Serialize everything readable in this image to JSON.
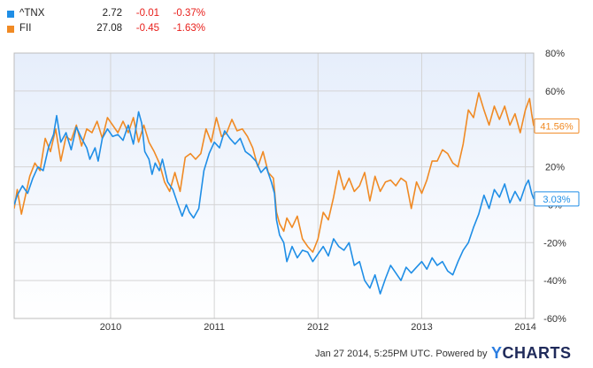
{
  "legend": [
    {
      "symbol": "^TNX",
      "last": "2.72",
      "change": "-0.01",
      "pct": "-0.37%",
      "color": "#1f8ee6"
    },
    {
      "symbol": "FII",
      "last": "27.08",
      "change": "-0.45",
      "pct": "-1.63%",
      "color": "#f08a24"
    }
  ],
  "footer": {
    "text": "Jan 27 2014, 5:25PM UTC.  Powered by",
    "brand_y": "Y",
    "brand_rest": "CHARTS"
  },
  "chart_data": {
    "type": "line",
    "x_tick_labels": [
      "2010",
      "2011",
      "2012",
      "2013",
      "2014"
    ],
    "y_tick_labels": [
      "80%",
      "60%",
      "40%",
      "20%",
      "0%",
      "-20%",
      "-40%",
      "-60%"
    ],
    "ylim": [
      -60,
      80
    ],
    "xlim": [
      2009.07,
      2014.08
    ],
    "grid": true,
    "legend_position": "top-left",
    "series": [
      {
        "name": "^TNX",
        "color": "#1f8ee6",
        "end_label": "3.03%",
        "points": [
          [
            2009.07,
            0
          ],
          [
            2009.1,
            5
          ],
          [
            2009.15,
            10
          ],
          [
            2009.2,
            6
          ],
          [
            2009.25,
            14
          ],
          [
            2009.3,
            20
          ],
          [
            2009.35,
            18
          ],
          [
            2009.4,
            30
          ],
          [
            2009.45,
            37
          ],
          [
            2009.48,
            47
          ],
          [
            2009.52,
            33
          ],
          [
            2009.57,
            38
          ],
          [
            2009.62,
            29
          ],
          [
            2009.67,
            41
          ],
          [
            2009.72,
            35
          ],
          [
            2009.77,
            30
          ],
          [
            2009.8,
            24
          ],
          [
            2009.85,
            30
          ],
          [
            2009.88,
            23
          ],
          [
            2009.92,
            35
          ],
          [
            2009.97,
            40
          ],
          [
            2010.02,
            36
          ],
          [
            2010.07,
            37
          ],
          [
            2010.12,
            34
          ],
          [
            2010.17,
            42
          ],
          [
            2010.22,
            32
          ],
          [
            2010.27,
            49
          ],
          [
            2010.3,
            43
          ],
          [
            2010.33,
            28
          ],
          [
            2010.37,
            24
          ],
          [
            2010.4,
            16
          ],
          [
            2010.43,
            22
          ],
          [
            2010.47,
            18
          ],
          [
            2010.5,
            24
          ],
          [
            2010.55,
            12
          ],
          [
            2010.6,
            8
          ],
          [
            2010.65,
            0
          ],
          [
            2010.69,
            -6
          ],
          [
            2010.73,
            0
          ],
          [
            2010.76,
            -4
          ],
          [
            2010.8,
            -7
          ],
          [
            2010.85,
            -2
          ],
          [
            2010.9,
            18
          ],
          [
            2010.95,
            27
          ],
          [
            2011.0,
            33
          ],
          [
            2011.05,
            30
          ],
          [
            2011.1,
            39
          ],
          [
            2011.15,
            35
          ],
          [
            2011.2,
            32
          ],
          [
            2011.25,
            35
          ],
          [
            2011.3,
            28
          ],
          [
            2011.35,
            26
          ],
          [
            2011.4,
            23
          ],
          [
            2011.45,
            17
          ],
          [
            2011.5,
            20
          ],
          [
            2011.55,
            12
          ],
          [
            2011.58,
            6
          ],
          [
            2011.6,
            -8
          ],
          [
            2011.63,
            -16
          ],
          [
            2011.67,
            -20
          ],
          [
            2011.7,
            -30
          ],
          [
            2011.75,
            -22
          ],
          [
            2011.8,
            -28
          ],
          [
            2011.85,
            -24
          ],
          [
            2011.9,
            -25
          ],
          [
            2011.95,
            -30
          ],
          [
            2012.0,
            -26
          ],
          [
            2012.05,
            -22
          ],
          [
            2012.1,
            -27
          ],
          [
            2012.15,
            -18
          ],
          [
            2012.2,
            -22
          ],
          [
            2012.25,
            -24
          ],
          [
            2012.3,
            -20
          ],
          [
            2012.35,
            -32
          ],
          [
            2012.4,
            -30
          ],
          [
            2012.45,
            -40
          ],
          [
            2012.5,
            -44
          ],
          [
            2012.55,
            -37
          ],
          [
            2012.6,
            -47
          ],
          [
            2012.65,
            -39
          ],
          [
            2012.7,
            -32
          ],
          [
            2012.75,
            -36
          ],
          [
            2012.8,
            -40
          ],
          [
            2012.85,
            -33
          ],
          [
            2012.9,
            -36
          ],
          [
            2012.95,
            -33
          ],
          [
            2013.0,
            -30
          ],
          [
            2013.05,
            -34
          ],
          [
            2013.1,
            -28
          ],
          [
            2013.15,
            -32
          ],
          [
            2013.2,
            -30
          ],
          [
            2013.25,
            -35
          ],
          [
            2013.3,
            -37
          ],
          [
            2013.35,
            -30
          ],
          [
            2013.4,
            -24
          ],
          [
            2013.45,
            -20
          ],
          [
            2013.5,
            -12
          ],
          [
            2013.55,
            -5
          ],
          [
            2013.6,
            5
          ],
          [
            2013.65,
            -2
          ],
          [
            2013.7,
            8
          ],
          [
            2013.75,
            4
          ],
          [
            2013.8,
            11
          ],
          [
            2013.85,
            1
          ],
          [
            2013.9,
            7
          ],
          [
            2013.95,
            2
          ],
          [
            2014.0,
            10
          ],
          [
            2014.03,
            13
          ],
          [
            2014.06,
            6
          ],
          [
            2014.08,
            3.03
          ]
        ]
      },
      {
        "name": "FII",
        "color": "#f08a24",
        "end_label": "41.56%",
        "points": [
          [
            2009.07,
            -2
          ],
          [
            2009.1,
            8
          ],
          [
            2009.14,
            -5
          ],
          [
            2009.18,
            5
          ],
          [
            2009.22,
            15
          ],
          [
            2009.27,
            22
          ],
          [
            2009.32,
            18
          ],
          [
            2009.37,
            35
          ],
          [
            2009.42,
            28
          ],
          [
            2009.47,
            40
          ],
          [
            2009.52,
            23
          ],
          [
            2009.57,
            36
          ],
          [
            2009.62,
            34
          ],
          [
            2009.67,
            42
          ],
          [
            2009.72,
            31
          ],
          [
            2009.77,
            40
          ],
          [
            2009.82,
            38
          ],
          [
            2009.87,
            44
          ],
          [
            2009.92,
            35
          ],
          [
            2009.97,
            46
          ],
          [
            2010.02,
            42
          ],
          [
            2010.07,
            38
          ],
          [
            2010.12,
            44
          ],
          [
            2010.17,
            38
          ],
          [
            2010.22,
            46
          ],
          [
            2010.27,
            33
          ],
          [
            2010.32,
            42
          ],
          [
            2010.37,
            33
          ],
          [
            2010.42,
            28
          ],
          [
            2010.47,
            22
          ],
          [
            2010.52,
            12
          ],
          [
            2010.57,
            7
          ],
          [
            2010.62,
            17
          ],
          [
            2010.67,
            7
          ],
          [
            2010.72,
            25
          ],
          [
            2010.77,
            27
          ],
          [
            2010.82,
            24
          ],
          [
            2010.87,
            27
          ],
          [
            2010.92,
            40
          ],
          [
            2010.97,
            33
          ],
          [
            2011.02,
            46
          ],
          [
            2011.07,
            36
          ],
          [
            2011.12,
            38
          ],
          [
            2011.17,
            45
          ],
          [
            2011.22,
            39
          ],
          [
            2011.27,
            40
          ],
          [
            2011.32,
            36
          ],
          [
            2011.37,
            30
          ],
          [
            2011.42,
            20
          ],
          [
            2011.47,
            28
          ],
          [
            2011.52,
            17
          ],
          [
            2011.57,
            14
          ],
          [
            2011.6,
            -4
          ],
          [
            2011.63,
            -10
          ],
          [
            2011.67,
            -14
          ],
          [
            2011.7,
            -7
          ],
          [
            2011.75,
            -12
          ],
          [
            2011.8,
            -6
          ],
          [
            2011.85,
            -18
          ],
          [
            2011.9,
            -22
          ],
          [
            2011.95,
            -25
          ],
          [
            2012.0,
            -18
          ],
          [
            2012.05,
            -4
          ],
          [
            2012.1,
            -8
          ],
          [
            2012.15,
            4
          ],
          [
            2012.2,
            18
          ],
          [
            2012.25,
            8
          ],
          [
            2012.3,
            14
          ],
          [
            2012.35,
            7
          ],
          [
            2012.4,
            10
          ],
          [
            2012.45,
            17
          ],
          [
            2012.5,
            2
          ],
          [
            2012.55,
            15
          ],
          [
            2012.6,
            7
          ],
          [
            2012.65,
            12
          ],
          [
            2012.7,
            13
          ],
          [
            2012.75,
            10
          ],
          [
            2012.8,
            14
          ],
          [
            2012.85,
            12
          ],
          [
            2012.9,
            -2
          ],
          [
            2012.95,
            12
          ],
          [
            2013.0,
            6
          ],
          [
            2013.05,
            13
          ],
          [
            2013.1,
            23
          ],
          [
            2013.15,
            23
          ],
          [
            2013.2,
            29
          ],
          [
            2013.25,
            27
          ],
          [
            2013.3,
            22
          ],
          [
            2013.35,
            20
          ],
          [
            2013.4,
            32
          ],
          [
            2013.45,
            50
          ],
          [
            2013.5,
            46
          ],
          [
            2013.55,
            59
          ],
          [
            2013.6,
            50
          ],
          [
            2013.65,
            42
          ],
          [
            2013.7,
            52
          ],
          [
            2013.75,
            45
          ],
          [
            2013.8,
            52
          ],
          [
            2013.85,
            42
          ],
          [
            2013.9,
            48
          ],
          [
            2013.95,
            38
          ],
          [
            2014.0,
            50
          ],
          [
            2014.04,
            56
          ],
          [
            2014.06,
            48
          ],
          [
            2014.08,
            41.56
          ]
        ]
      }
    ]
  }
}
